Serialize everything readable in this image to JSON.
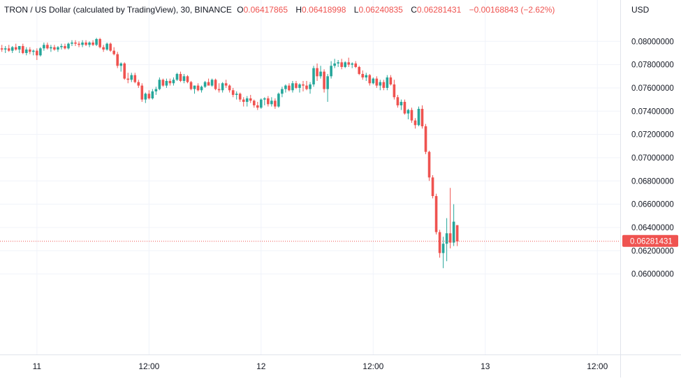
{
  "legend": {
    "symbol": "TRON / US Dollar (calculated by TradingView), 30, BINANCE",
    "o_label": "O",
    "o_value": "0.06417865",
    "h_label": "H",
    "h_value": "0.06418998",
    "l_label": "L",
    "l_value": "0.06240835",
    "c_label": "C",
    "c_value": "0.06281431",
    "change": "−0.00168843 (−2.62%)"
  },
  "price_axis": {
    "currency": "USD",
    "last_price_label": "0.06281431"
  },
  "colors": {
    "up": "#26a69a",
    "down": "#ef5350",
    "grid": "#f0f3fa",
    "axis_text": "#131722",
    "last_price": "#ef5350"
  },
  "chart_data": {
    "type": "candlestick",
    "xlabel": "",
    "ylabel": "",
    "ylim": [
      0.0593,
      0.0811
    ],
    "y_ticks": [
      {
        "value": 0.08,
        "label": "0.08000000"
      },
      {
        "value": 0.078,
        "label": "0.07800000"
      },
      {
        "value": 0.076,
        "label": "0.07600000"
      },
      {
        "value": 0.074,
        "label": "0.07400000"
      },
      {
        "value": 0.072,
        "label": "0.07200000"
      },
      {
        "value": 0.07,
        "label": "0.07000000"
      },
      {
        "value": 0.068,
        "label": "0.06800000"
      },
      {
        "value": 0.066,
        "label": "0.06600000"
      },
      {
        "value": 0.064,
        "label": "0.06400000"
      },
      {
        "value": 0.062,
        "label": "0.06200000"
      },
      {
        "value": 0.06,
        "label": "0.06000000"
      }
    ],
    "x_ticks": [
      {
        "index": 10,
        "label": "11"
      },
      {
        "index": 42,
        "label": "12:00"
      },
      {
        "index": 74,
        "label": "12"
      },
      {
        "index": 106,
        "label": "12:00"
      },
      {
        "index": 138,
        "label": "13"
      },
      {
        "index": 170,
        "label": "12:00"
      }
    ],
    "last_price": 0.06281431,
    "candles": [
      [
        0.0794,
        0.0797,
        0.0791,
        0.0793
      ],
      [
        0.0793,
        0.0796,
        0.079,
        0.0794
      ],
      [
        0.0794,
        0.0797,
        0.0791,
        0.0792
      ],
      [
        0.0792,
        0.0796,
        0.079,
        0.0795
      ],
      [
        0.0795,
        0.0798,
        0.0792,
        0.0793
      ],
      [
        0.0793,
        0.0796,
        0.079,
        0.0796
      ],
      [
        0.0796,
        0.0798,
        0.0789,
        0.079
      ],
      [
        0.079,
        0.0795,
        0.0788,
        0.0793
      ],
      [
        0.0793,
        0.0795,
        0.0789,
        0.0791
      ],
      [
        0.0791,
        0.0793,
        0.0788,
        0.0792
      ],
      [
        0.0792,
        0.0794,
        0.0784,
        0.0788
      ],
      [
        0.0788,
        0.0795,
        0.0787,
        0.0794
      ],
      [
        0.0794,
        0.0799,
        0.0792,
        0.0797
      ],
      [
        0.0797,
        0.0799,
        0.0793,
        0.0794
      ],
      [
        0.0794,
        0.0797,
        0.0791,
        0.0795
      ],
      [
        0.0795,
        0.0797,
        0.0792,
        0.0793
      ],
      [
        0.0793,
        0.0796,
        0.0791,
        0.0795
      ],
      [
        0.0795,
        0.0798,
        0.0793,
        0.0796
      ],
      [
        0.0796,
        0.0798,
        0.0793,
        0.0794
      ],
      [
        0.0794,
        0.0799,
        0.0793,
        0.0798
      ],
      [
        0.0798,
        0.0801,
        0.0796,
        0.0799
      ],
      [
        0.0799,
        0.0801,
        0.0796,
        0.0798
      ],
      [
        0.0798,
        0.08,
        0.0795,
        0.0797
      ],
      [
        0.0797,
        0.0801,
        0.0795,
        0.0799
      ],
      [
        0.0799,
        0.0801,
        0.0796,
        0.0797
      ],
      [
        0.0797,
        0.08,
        0.0795,
        0.0799
      ],
      [
        0.0799,
        0.0801,
        0.0796,
        0.0797
      ],
      [
        0.0797,
        0.0803,
        0.0796,
        0.0802
      ],
      [
        0.0802,
        0.0803,
        0.0794,
        0.0795
      ],
      [
        0.0795,
        0.0797,
        0.0791,
        0.0793
      ],
      [
        0.0793,
        0.0799,
        0.0792,
        0.0798
      ],
      [
        0.0798,
        0.0799,
        0.0791,
        0.0792
      ],
      [
        0.0792,
        0.0795,
        0.0788,
        0.0789
      ],
      [
        0.0789,
        0.0791,
        0.0777,
        0.0779
      ],
      [
        0.0779,
        0.0782,
        0.0774,
        0.0781
      ],
      [
        0.0781,
        0.0782,
        0.0767,
        0.0768
      ],
      [
        0.0768,
        0.0773,
        0.0764,
        0.0767
      ],
      [
        0.0767,
        0.0773,
        0.0765,
        0.0771
      ],
      [
        0.0771,
        0.0773,
        0.0764,
        0.0765
      ],
      [
        0.0765,
        0.0767,
        0.076,
        0.0762
      ],
      [
        0.0762,
        0.0764,
        0.0748,
        0.075
      ],
      [
        0.075,
        0.0756,
        0.0747,
        0.0755
      ],
      [
        0.0755,
        0.0758,
        0.075,
        0.0751
      ],
      [
        0.0751,
        0.0759,
        0.075,
        0.0757
      ],
      [
        0.0757,
        0.0761,
        0.0754,
        0.0759
      ],
      [
        0.0759,
        0.0769,
        0.0758,
        0.0767
      ],
      [
        0.0767,
        0.0768,
        0.0761,
        0.0762
      ],
      [
        0.0762,
        0.0768,
        0.076,
        0.0766
      ],
      [
        0.0766,
        0.0768,
        0.0762,
        0.0764
      ],
      [
        0.0764,
        0.0769,
        0.0762,
        0.0767
      ],
      [
        0.0767,
        0.0773,
        0.0766,
        0.0772
      ],
      [
        0.0772,
        0.0774,
        0.0765,
        0.0766
      ],
      [
        0.0766,
        0.0772,
        0.0764,
        0.077
      ],
      [
        0.077,
        0.0771,
        0.0764,
        0.0765
      ],
      [
        0.0765,
        0.0766,
        0.0758,
        0.0759
      ],
      [
        0.0759,
        0.0762,
        0.0755,
        0.0762
      ],
      [
        0.0762,
        0.0764,
        0.0757,
        0.0758
      ],
      [
        0.0758,
        0.0762,
        0.0756,
        0.0761
      ],
      [
        0.0761,
        0.0766,
        0.076,
        0.0765
      ],
      [
        0.0765,
        0.0768,
        0.0763,
        0.0762
      ],
      [
        0.0762,
        0.0768,
        0.0761,
        0.0767
      ],
      [
        0.0767,
        0.0768,
        0.0758,
        0.0759
      ],
      [
        0.0759,
        0.0764,
        0.0756,
        0.0758
      ],
      [
        0.0758,
        0.0765,
        0.0756,
        0.0764
      ],
      [
        0.0764,
        0.0767,
        0.076,
        0.0762
      ],
      [
        0.0762,
        0.0763,
        0.0756,
        0.0758
      ],
      [
        0.0758,
        0.076,
        0.0752,
        0.0754
      ],
      [
        0.0754,
        0.0757,
        0.075,
        0.0755
      ],
      [
        0.0755,
        0.0756,
        0.0748,
        0.075
      ],
      [
        0.075,
        0.0752,
        0.0744,
        0.0748
      ],
      [
        0.0748,
        0.0753,
        0.0744,
        0.0751
      ],
      [
        0.0751,
        0.0754,
        0.0747,
        0.0749
      ],
      [
        0.0749,
        0.075,
        0.0743,
        0.0745
      ],
      [
        0.0745,
        0.0748,
        0.0741,
        0.0743
      ],
      [
        0.0743,
        0.0751,
        0.0742,
        0.075
      ],
      [
        0.075,
        0.0752,
        0.0745,
        0.0751
      ],
      [
        0.0751,
        0.0753,
        0.0744,
        0.0746
      ],
      [
        0.0746,
        0.0752,
        0.0744,
        0.0749
      ],
      [
        0.0749,
        0.0751,
        0.0742,
        0.0744
      ],
      [
        0.0744,
        0.0756,
        0.0743,
        0.0755
      ],
      [
        0.0755,
        0.0761,
        0.0752,
        0.0759
      ],
      [
        0.0759,
        0.0763,
        0.0756,
        0.0762
      ],
      [
        0.0762,
        0.0764,
        0.0757,
        0.0758
      ],
      [
        0.0758,
        0.0766,
        0.0756,
        0.0764
      ],
      [
        0.0764,
        0.0766,
        0.0759,
        0.076
      ],
      [
        0.076,
        0.0764,
        0.0756,
        0.0763
      ],
      [
        0.0763,
        0.0766,
        0.0757,
        0.0762
      ],
      [
        0.0762,
        0.0766,
        0.0758,
        0.0759
      ],
      [
        0.0759,
        0.0765,
        0.0755,
        0.0763
      ],
      [
        0.0763,
        0.0779,
        0.0761,
        0.0777
      ],
      [
        0.0777,
        0.0781,
        0.0766,
        0.077
      ],
      [
        0.077,
        0.0779,
        0.0768,
        0.0774
      ],
      [
        0.0774,
        0.0776,
        0.0756,
        0.0759
      ],
      [
        0.0759,
        0.0772,
        0.0748,
        0.077
      ],
      [
        0.077,
        0.0783,
        0.0768,
        0.0779
      ],
      [
        0.0779,
        0.0785,
        0.0777,
        0.0781
      ],
      [
        0.0781,
        0.0784,
        0.0778,
        0.0782
      ],
      [
        0.0782,
        0.0785,
        0.0776,
        0.0778
      ],
      [
        0.0778,
        0.0783,
        0.0777,
        0.0782
      ],
      [
        0.0782,
        0.0786,
        0.0778,
        0.078
      ],
      [
        0.078,
        0.0782,
        0.0777,
        0.0781
      ],
      [
        0.0781,
        0.0783,
        0.0777,
        0.0778
      ],
      [
        0.0778,
        0.0779,
        0.0771,
        0.0772
      ],
      [
        0.0772,
        0.0775,
        0.0767,
        0.0769
      ],
      [
        0.0769,
        0.0773,
        0.0766,
        0.0771
      ],
      [
        0.0771,
        0.0772,
        0.0762,
        0.0764
      ],
      [
        0.0764,
        0.0769,
        0.0763,
        0.0768
      ],
      [
        0.0768,
        0.077,
        0.076,
        0.0762
      ],
      [
        0.0762,
        0.0767,
        0.0758,
        0.0765
      ],
      [
        0.0765,
        0.0767,
        0.0758,
        0.076
      ],
      [
        0.076,
        0.0771,
        0.0758,
        0.0769
      ],
      [
        0.0769,
        0.0771,
        0.0762,
        0.0763
      ],
      [
        0.0763,
        0.0767,
        0.075,
        0.0752
      ],
      [
        0.0752,
        0.0754,
        0.0743,
        0.0745
      ],
      [
        0.0745,
        0.075,
        0.0741,
        0.0748
      ],
      [
        0.0748,
        0.075,
        0.0737,
        0.0738
      ],
      [
        0.0738,
        0.0742,
        0.0733,
        0.0741
      ],
      [
        0.0741,
        0.0743,
        0.073,
        0.0732
      ],
      [
        0.0732,
        0.0734,
        0.0725,
        0.0728
      ],
      [
        0.0728,
        0.0744,
        0.0727,
        0.0742
      ],
      [
        0.0742,
        0.0745,
        0.0725,
        0.0727
      ],
      [
        0.0727,
        0.0729,
        0.0703,
        0.0705
      ],
      [
        0.0705,
        0.0706,
        0.068,
        0.0683
      ],
      [
        0.0683,
        0.0685,
        0.0665,
        0.0667
      ],
      [
        0.0667,
        0.0669,
        0.0634,
        0.0636
      ],
      [
        0.0636,
        0.0638,
        0.0614,
        0.0618
      ],
      [
        0.0618,
        0.0632,
        0.0605,
        0.0626
      ],
      [
        0.0626,
        0.0648,
        0.0611,
        0.0635
      ],
      [
        0.0635,
        0.0674,
        0.0622,
        0.0627
      ],
      [
        0.0627,
        0.066,
        0.0624,
        0.0645
      ],
      [
        0.0642,
        0.0642,
        0.0624,
        0.0628
      ]
    ]
  }
}
